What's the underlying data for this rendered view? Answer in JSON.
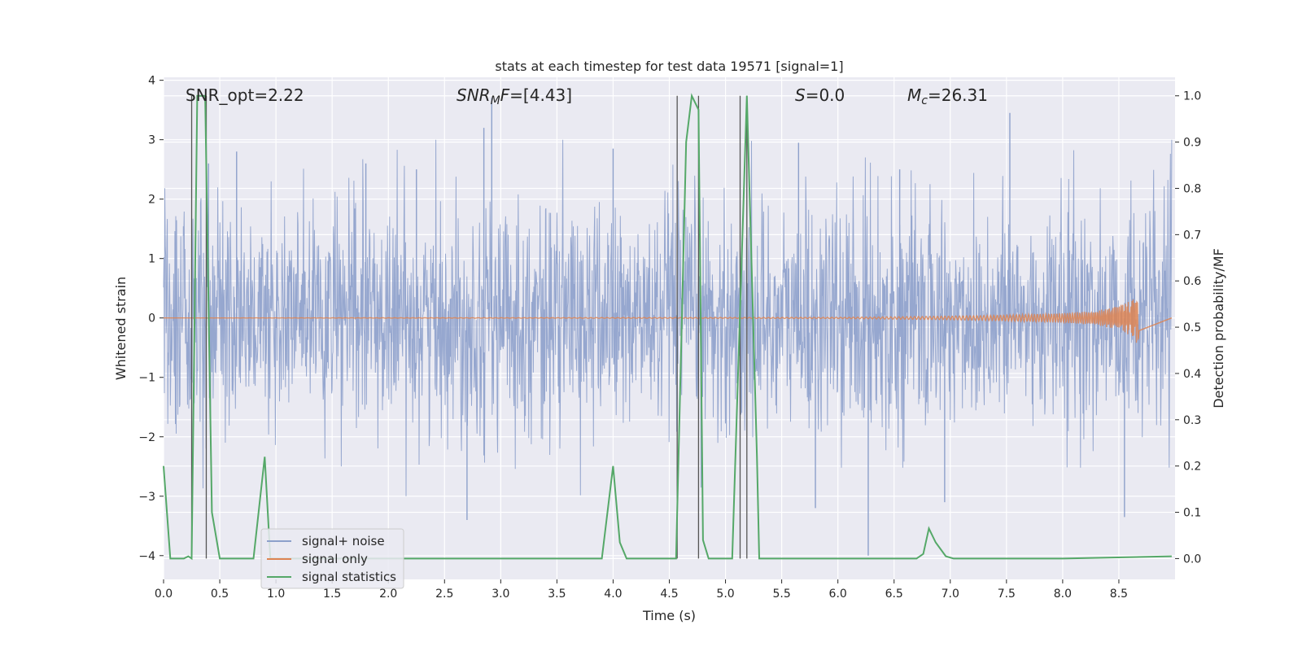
{
  "chart_data": {
    "type": "line",
    "title": "stats at each timestep for test data 19571 [signal=1]",
    "xlabel": "Time (s)",
    "ylabel_left": "Whitened strain",
    "ylabel_right": "Detection probability/MF",
    "xlim": [
      0.0,
      9.0
    ],
    "ylim_left": [
      -4.4,
      4.05
    ],
    "ylim_right": [
      -0.045,
      1.04
    ],
    "x_ticks": [
      "0.0",
      "0.5",
      "1.0",
      "1.5",
      "2.0",
      "2.5",
      "3.0",
      "3.5",
      "4.0",
      "4.5",
      "5.0",
      "5.5",
      "6.0",
      "6.5",
      "7.0",
      "7.5",
      "8.0",
      "8.5"
    ],
    "y_ticks_left": [
      "−4",
      "−3",
      "−2",
      "−1",
      "0",
      "1",
      "2",
      "3",
      "4"
    ],
    "y_ticks_right": [
      "0.0",
      "0.1",
      "0.2",
      "0.3",
      "0.4",
      "0.5",
      "0.6",
      "0.7",
      "0.8",
      "0.9",
      "1.0"
    ],
    "grid": true,
    "annotations": {
      "snr_opt": "SNR_opt=2.22",
      "snr_mf_italic": "SNR",
      "snr_mf_sub": "M",
      "snr_mf_italic2": "F",
      "snr_mf_value": "=[4.43]",
      "s_italic": "S",
      "s_value": "=0.0",
      "mc_italic": "M",
      "mc_sub": "c",
      "mc_value": "=26.31"
    },
    "legend": {
      "placement": "lower-left",
      "entries": [
        "signal+ noise",
        "signal only",
        "signal statistics"
      ]
    },
    "colors": {
      "noise": "#8da0cb",
      "signal": "#dd8452",
      "statistics": "#55a868",
      "vlines": "#555555",
      "background": "#eaeaf2"
    },
    "series": [
      {
        "name": "signal+ noise",
        "axis": "left",
        "description_values": "whitened strain noise, roughly Gaussian with peaks up to about ±3.7",
        "envelope_typical": 1.7,
        "peak_points": [
          [
            0.4,
            2.6
          ],
          [
            0.65,
            2.8
          ],
          [
            1.8,
            2.6
          ],
          [
            2.25,
            2.5
          ],
          [
            2.7,
            -3.4
          ],
          [
            2.85,
            3.2
          ],
          [
            2.92,
            3.7
          ],
          [
            4.0,
            2.85
          ],
          [
            5.65,
            2.95
          ],
          [
            5.8,
            -3.2
          ],
          [
            6.27,
            -4.0
          ],
          [
            6.55,
            2.5
          ],
          [
            6.95,
            -3.1
          ],
          [
            7.53,
            3.45
          ],
          [
            8.55,
            -3.35
          ]
        ]
      },
      {
        "name": "signal only",
        "axis": "left",
        "description_values": "chirp signal, flat near 0 until about 6.8 s then growing to about ±0.45 at 8.67 s",
        "x": [
          0.0,
          6.0,
          7.0,
          7.5,
          8.0,
          8.3,
          8.5,
          8.6,
          8.67,
          8.7
        ],
        "amplitude": [
          0.0,
          0.01,
          0.03,
          0.05,
          0.08,
          0.12,
          0.2,
          0.3,
          0.45,
          0.0
        ]
      },
      {
        "name": "signal statistics",
        "axis": "right",
        "x": [
          0.0,
          0.06,
          0.18,
          0.22,
          0.25,
          0.3,
          0.37,
          0.43,
          0.5,
          0.6,
          0.8,
          0.9,
          0.95,
          1.0,
          1.06,
          1.5,
          2.0,
          3.0,
          3.9,
          4.0,
          4.06,
          4.12,
          4.2,
          4.56,
          4.65,
          4.7,
          4.76,
          4.8,
          4.85,
          5.06,
          5.19,
          5.28,
          5.3,
          6.0,
          6.7,
          6.76,
          6.81,
          6.87,
          6.96,
          7.03,
          7.5,
          8.0,
          8.97
        ],
        "y": [
          0.2,
          0.0,
          0.0,
          0.005,
          0.0,
          1.0,
          1.0,
          0.1,
          0.0,
          0.0,
          0.0,
          0.22,
          0.0,
          0.0,
          0.0,
          0.0,
          0.0,
          0.0,
          0.0,
          0.2,
          0.035,
          0.0,
          0.0,
          0.0,
          0.9,
          1.0,
          0.97,
          0.04,
          0.0,
          0.0,
          1.0,
          0.22,
          0.0,
          0.0,
          0.0,
          0.01,
          0.065,
          0.035,
          0.005,
          0.0,
          0.0,
          0.0,
          0.005
        ]
      }
    ],
    "vertical_lines_time": [
      0.25,
      0.38,
      4.57,
      4.76,
      5.13,
      5.19
    ]
  }
}
